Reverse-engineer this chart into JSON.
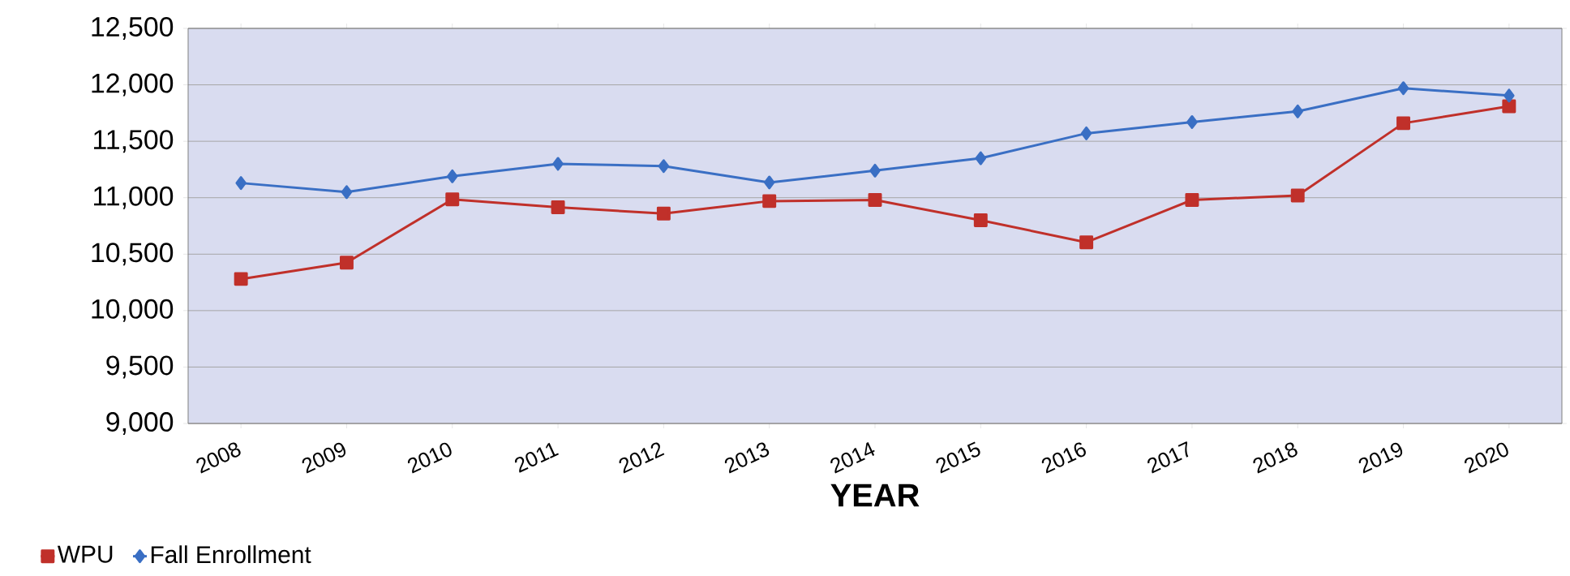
{
  "chart_data": {
    "type": "line",
    "xlabel": "YEAR",
    "categories": [
      "2008",
      "2009",
      "2010",
      "2011",
      "2012",
      "2013",
      "2014",
      "2015",
      "2016",
      "2017",
      "2018",
      "2019",
      "2020"
    ],
    "series": [
      {
        "name": "WPU",
        "color": "#c0302a",
        "marker": "square",
        "values": [
          10280,
          10425,
          10985,
          10915,
          10860,
          10970,
          10980,
          10800,
          10605,
          10980,
          11020,
          11660,
          11810
        ]
      },
      {
        "name": "Fall Enrollment",
        "color": "#3a6fc4",
        "marker": "diamond",
        "values": [
          11130,
          11050,
          11190,
          11300,
          11280,
          11135,
          11240,
          11350,
          11570,
          11670,
          11765,
          11970,
          11905
        ]
      }
    ],
    "ylim": [
      9000,
      12500
    ],
    "yticks": [
      {
        "value": 9000,
        "label": "9,000"
      },
      {
        "value": 9500,
        "label": "9,500"
      },
      {
        "value": 10000,
        "label": "10,000"
      },
      {
        "value": 10500,
        "label": "10,500"
      },
      {
        "value": 11000,
        "label": "11,000"
      },
      {
        "value": 11500,
        "label": "11,500"
      },
      {
        "value": 12000,
        "label": "12,000"
      },
      {
        "value": 12500,
        "label": "12,500"
      }
    ],
    "grid": "y",
    "legend": "bottom left",
    "line_style": "solid"
  }
}
